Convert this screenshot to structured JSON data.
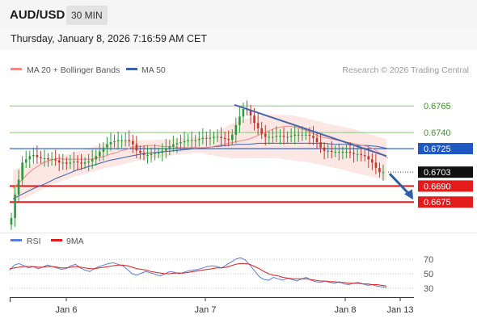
{
  "header": {
    "pair": "AUD/USD",
    "timeframe": "30 MIN",
    "datetime": "Thursday, January 8, 2026 7:16:59 AM CET"
  },
  "legend": {
    "ma20_label": "MA 20 + Bollinger Bands",
    "ma50_label": "MA 50",
    "copyright": "Research © 2026 Trading Central",
    "rsi_label": "RSI",
    "rsi_ma_label": "9MA"
  },
  "colors": {
    "bull": "#2b9a3a",
    "bear": "#c0392b",
    "ma20": "#f08a80",
    "band_fill": "#fde3e1",
    "ma50": "#3a5fb0",
    "trendline": "#4a64a8",
    "green_level": "#8bc47a",
    "blue_level": "#1f57c3",
    "red_level": "#e31b1b",
    "arrow": "#2d5fa8",
    "rsi": "#5b7fd6",
    "rsi_ma": "#e31b1b"
  },
  "chart_data": [
    {
      "type": "candlestick",
      "title": "AUD/USD",
      "timeframe": "30 MIN",
      "x_ticks": [
        "Jan 6",
        "Jan 7",
        "Jan 8",
        "Jan 13"
      ],
      "y_range": [
        0.6651,
        0.679
      ],
      "levels": [
        {
          "value": 0.6765,
          "label": "0.6765",
          "kind": "resistance"
        },
        {
          "value": 0.674,
          "label": "0.6740",
          "kind": "resistance"
        },
        {
          "value": 0.6725,
          "label": "0.6725",
          "kind": "pivot"
        },
        {
          "value": 0.6703,
          "label": "0.6703",
          "kind": "last_price"
        },
        {
          "value": 0.669,
          "label": "0.6690",
          "kind": "support"
        },
        {
          "value": 0.6675,
          "label": "0.6675",
          "kind": "support"
        }
      ],
      "closes": [
        0.666,
        0.6682,
        0.6696,
        0.6712,
        0.6715,
        0.6718,
        0.6719,
        0.6717,
        0.6716,
        0.6716,
        0.6715,
        0.6715,
        0.6714,
        0.6712,
        0.6712,
        0.6711,
        0.6712,
        0.6713,
        0.6712,
        0.6711,
        0.6712,
        0.6713,
        0.6715,
        0.6718,
        0.6722,
        0.6726,
        0.6729,
        0.6731,
        0.6732,
        0.6733,
        0.6733,
        0.6733,
        0.6732,
        0.6729,
        0.6723,
        0.6721,
        0.6719,
        0.6719,
        0.672,
        0.6721,
        0.6721,
        0.6723,
        0.6725,
        0.6727,
        0.6729,
        0.673,
        0.6731,
        0.6732,
        0.6733,
        0.6733,
        0.6733,
        0.6734,
        0.6735,
        0.6735,
        0.6735,
        0.6736,
        0.6736,
        0.6735,
        0.6734,
        0.6733,
        0.6738,
        0.6747,
        0.6755,
        0.6762,
        0.6761,
        0.6756,
        0.6749,
        0.6744,
        0.6739,
        0.6736,
        0.6736,
        0.6736,
        0.6737,
        0.6737,
        0.6736,
        0.6736,
        0.6737,
        0.6738,
        0.6738,
        0.6738,
        0.6738,
        0.6737,
        0.6735,
        0.6731,
        0.6726,
        0.6723,
        0.6723,
        0.6722,
        0.6722,
        0.6722,
        0.6722,
        0.6722,
        0.6721,
        0.672,
        0.672,
        0.6719,
        0.6718,
        0.6715,
        0.6712,
        0.6707,
        0.6703,
        0.6703
      ],
      "ma20": [
        0.6688,
        0.6692,
        0.6697,
        0.6702,
        0.6706,
        0.6709,
        0.6712,
        0.6714,
        0.6715,
        0.6716,
        0.6715,
        0.6715,
        0.6715,
        0.6715,
        0.6715,
        0.6715,
        0.6716,
        0.6717,
        0.6718,
        0.672,
        0.6721,
        0.6723,
        0.6724,
        0.6726,
        0.6727,
        0.6727,
        0.6728,
        0.6728,
        0.6728,
        0.6727,
        0.6727,
        0.6727,
        0.6726,
        0.6726,
        0.6726,
        0.6726,
        0.6726,
        0.6726,
        0.6726,
        0.6727,
        0.6728,
        0.6729,
        0.673,
        0.6731,
        0.6732,
        0.6733,
        0.6734,
        0.6736,
        0.6738,
        0.674,
        0.6742,
        0.6744,
        0.6745,
        0.6746,
        0.6746,
        0.6745,
        0.6744,
        0.6742,
        0.674,
        0.6738,
        0.6736,
        0.6735,
        0.6734,
        0.6733,
        0.6732,
        0.6731,
        0.673,
        0.6729,
        0.6728,
        0.6727,
        0.6725,
        0.6722,
        0.6719,
        0.6716
      ],
      "bollinger_upper": [
        0.6705,
        0.671,
        0.6714,
        0.6718,
        0.6722,
        0.6726,
        0.673,
        0.6733,
        0.6733,
        0.6733,
        0.6734,
        0.6735,
        0.6736,
        0.674,
        0.6748,
        0.6753,
        0.6756,
        0.6757,
        0.6756,
        0.6753,
        0.6749,
        0.6746,
        0.6743,
        0.6738,
        0.6734
      ],
      "bollinger_lower": [
        0.6675,
        0.668,
        0.6688,
        0.6694,
        0.6699,
        0.6703,
        0.6707,
        0.671,
        0.6714,
        0.6716,
        0.6718,
        0.672,
        0.6721,
        0.6718,
        0.6716,
        0.6716,
        0.6716,
        0.6716,
        0.6714,
        0.6712,
        0.6709,
        0.6706,
        0.6702,
        0.6699,
        0.6695
      ],
      "ma50": [
        0.6678,
        0.6683,
        0.6688,
        0.6692,
        0.6697,
        0.6701,
        0.6705,
        0.6708,
        0.6711,
        0.6714,
        0.6716,
        0.6718,
        0.672,
        0.6721,
        0.6722,
        0.6723,
        0.6724,
        0.6725,
        0.6726,
        0.6727,
        0.6728,
        0.6729,
        0.6729,
        0.673,
        0.673,
        0.673,
        0.673,
        0.673,
        0.673,
        0.673,
        0.6729,
        0.6729,
        0.6728,
        0.6728,
        0.6727,
        0.6725
      ],
      "trendline": {
        "from": 0.6766,
        "to": 0.6718
      },
      "projection": {
        "from": 0.6703,
        "to": 0.6678
      }
    },
    {
      "type": "line",
      "title": "RSI",
      "y_ticks": [
        70,
        50,
        30
      ],
      "y_range": [
        20,
        80
      ],
      "rsi": [
        55,
        62,
        64,
        61,
        58,
        60,
        57,
        59,
        62,
        60,
        58,
        56,
        57,
        61,
        63,
        58,
        55,
        53,
        57,
        60,
        62,
        64,
        65,
        63,
        61,
        56,
        50,
        48,
        51,
        53,
        51,
        49,
        47,
        50,
        53,
        52,
        50,
        52,
        54,
        55,
        56,
        58,
        60,
        61,
        60,
        58,
        62,
        66,
        70,
        72,
        69,
        62,
        54,
        46,
        42,
        41,
        45,
        43,
        41,
        44,
        42,
        40,
        43,
        45,
        41,
        39,
        38,
        40,
        38,
        37,
        39,
        36,
        35,
        37,
        38,
        36,
        34,
        35,
        33,
        32,
        31
      ],
      "rsi_9ma": [
        57,
        58,
        59,
        60,
        60,
        60,
        59,
        59,
        60,
        60,
        59,
        58,
        58,
        59,
        60,
        59,
        58,
        57,
        57,
        58,
        59,
        60,
        61,
        62,
        62,
        61,
        59,
        57,
        56,
        55,
        53,
        52,
        51,
        50,
        50,
        51,
        51,
        51,
        52,
        53,
        54,
        55,
        56,
        57,
        58,
        58,
        59,
        61,
        63,
        64,
        64,
        63,
        60,
        57,
        53,
        50,
        48,
        47,
        45,
        44,
        43,
        43,
        43,
        43,
        42,
        41,
        40,
        40,
        39,
        39,
        38,
        38,
        37,
        37,
        37,
        36,
        36,
        35,
        35,
        34,
        33
      ]
    }
  ]
}
